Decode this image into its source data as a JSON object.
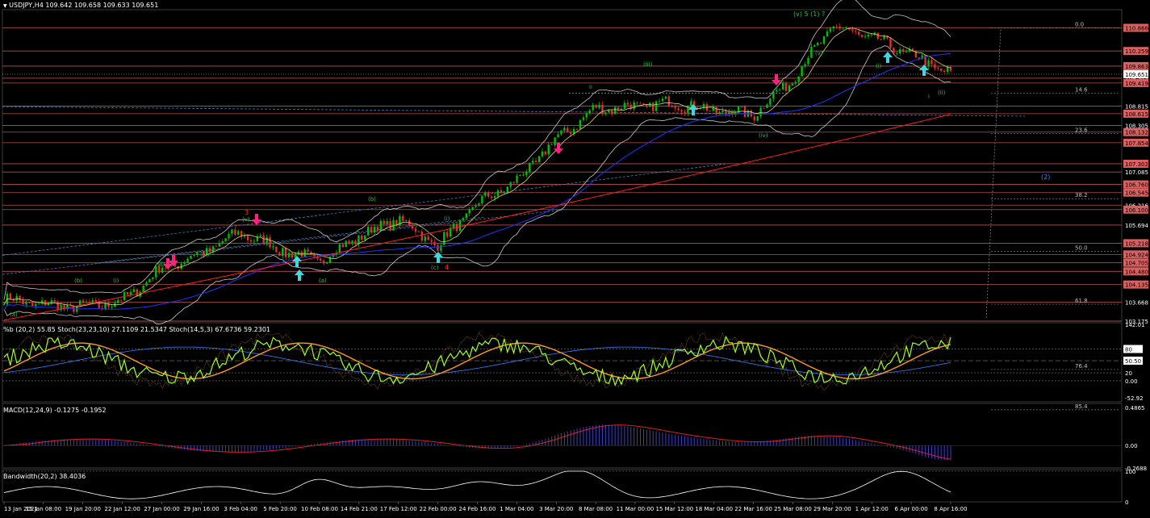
{
  "header": {
    "symbol_label": "USDJPY,H4",
    "ohlc": "109.642 109.658 109.633 109.651"
  },
  "colors": {
    "background": "#000000",
    "bull_candle": "#00c000",
    "bear_candle": "#e03030",
    "ma_blue": "#2233ff",
    "ma_red": "#ff2020",
    "ma_yellow": "#e0d070",
    "bands": "#c8c8c8",
    "h_level": "#d86060",
    "fib": "#808080",
    "stoch_green": "#a0ff20",
    "stoch_orange": "#ff9a20",
    "macd_line": "#e02020",
    "macd_hist": "#4040c0",
    "bw_line": "#ffffff",
    "arrow_up": "#40d8e0",
    "arrow_down": "#ff2080"
  },
  "main": {
    "price_labels": [
      "110.866",
      "110.259",
      "109.863",
      "109.651",
      "109.545",
      "109.419",
      "108.815",
      "108.615",
      "108.305",
      "108.132",
      "107.854",
      "107.302",
      "107.085",
      "106.760",
      "106.545",
      "106.216",
      "106.100",
      "105.694",
      "105.218",
      "104.924",
      "104.705",
      "104.480",
      "104.135",
      "103.668",
      "103.175"
    ],
    "fib_levels": [
      "0.0",
      "14.6",
      "23.6",
      "38.2",
      "50.0",
      "61.8",
      "76.4",
      "85.4"
    ],
    "wave_labels": {
      "top": "(v) 5 (1) ?",
      "w2": "(2)",
      "w3": "3",
      "w4": "4",
      "i": "(i)",
      "ii": "(ii)",
      "iii": "(iii)",
      "iv": "(iv)",
      "v": "(v)",
      "a": "(a)",
      "b": "(b)",
      "c": "(c)",
      "sub_i": "i",
      "sub_ii": "ii",
      "sub_iv": "iv"
    }
  },
  "indicators": {
    "stoch_label": "%b (20,2) 55.85  Stoch(23,23,10) 27.1109 21.5347  Stoch(14,5,3) 67.6736 59.2301",
    "stoch_scale": [
      "142.01",
      "80",
      "50.50",
      "0.00",
      "20",
      "-52.92"
    ],
    "macd_label": "MACD(12,24,9) -0.1275 -0.1952",
    "macd_scale": [
      "0.4865",
      "0.00",
      "-0.2688"
    ],
    "bw_label": "Bandwidth(20,2) 38.4036",
    "bw_scale": [
      "100",
      "0"
    ]
  },
  "chart_data": {
    "type": "line",
    "symbol": "USDJPY",
    "timeframe": "H4",
    "x": [
      "13 Jan 2021",
      "15 Jan 08:00",
      "19 Jan 20:00",
      "22 Jan 12:00",
      "27 Jan 00:00",
      "29 Jan 16:00",
      "3 Feb 04:00",
      "5 Feb 20:00",
      "10 Feb 08:00",
      "14 Feb 21:00",
      "17 Feb 12:00",
      "22 Feb 00:00",
      "24 Feb 16:00",
      "1 Mar 04:00",
      "3 Mar 20:00",
      "8 Mar 08:00",
      "11 Mar 00:00",
      "15 Mar 12:00",
      "18 Mar 04:00",
      "22 Mar 16:00",
      "25 Mar 08:00",
      "29 Mar 20:00",
      "1 Apr 12:00",
      "6 Apr 00:00",
      "8 Apr 16:00"
    ],
    "series": [
      {
        "values": [
          103.75,
          103.6,
          103.55,
          103.7,
          104.55,
          104.95,
          105.5,
          105.05,
          104.75,
          105.4,
          105.85,
          105.15,
          106.25,
          106.85,
          107.95,
          108.75,
          108.8,
          108.9,
          108.7,
          108.6,
          109.55,
          110.9,
          110.6,
          110.15,
          109.65
        ]
      }
    ],
    "ylim": [
      103.175,
      111.3
    ],
    "grid": false,
    "indicators": {
      "stochastic": {
        "ylim": [
          -52.92,
          142.01
        ],
        "levels": [
          80,
          50.5,
          20,
          0
        ]
      },
      "macd": {
        "ylim": [
          -0.2688,
          0.4865
        ],
        "last": -0.1275,
        "signal": -0.1952
      },
      "bandwidth": {
        "ylim": [
          0,
          100
        ],
        "last": 38.4036
      }
    }
  }
}
